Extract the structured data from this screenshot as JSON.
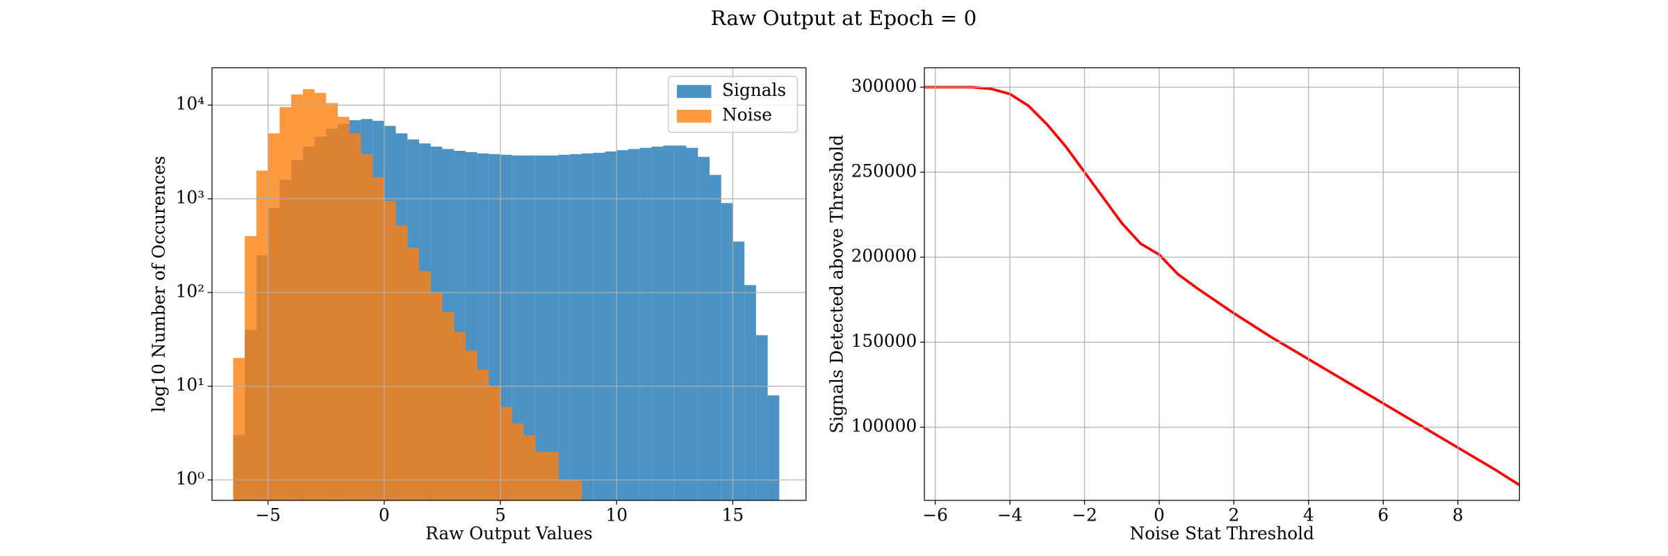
{
  "title": "Raw Output at Epoch = 0",
  "chart_data": [
    {
      "type": "histogram",
      "xlabel": "Raw Output Values",
      "ylabel": "log10 Number of Occurences",
      "log_y": true,
      "grid": true,
      "legend": "upper right",
      "bins": [
        -6.5,
        -6,
        -5.5,
        -5,
        -4.5,
        -4,
        -3.5,
        -3,
        -2.5,
        -2,
        -1.5,
        -1,
        -0.5,
        0,
        0.5,
        1,
        1.5,
        2,
        2.5,
        3,
        3.5,
        4,
        4.5,
        5,
        5.5,
        6,
        6.5,
        7,
        7.5,
        8,
        8.5,
        9,
        9.5,
        10,
        10.5,
        11,
        11.5,
        12,
        12.5,
        13,
        13.5,
        14,
        14.5,
        15,
        15.5,
        16,
        16.5,
        17
      ],
      "series": [
        {
          "name": "Signals",
          "color": "#1f77b4",
          "values": [
            3,
            40,
            250,
            800,
            1600,
            2600,
            3600,
            4600,
            5600,
            6300,
            6900,
            7100,
            6800,
            6000,
            5000,
            4300,
            3900,
            3600,
            3400,
            3250,
            3150,
            3050,
            3000,
            2950,
            2900,
            2900,
            2900,
            2900,
            2950,
            3000,
            3050,
            3100,
            3200,
            3300,
            3400,
            3500,
            3600,
            3700,
            3700,
            3500,
            2800,
            1800,
            900,
            350,
            120,
            35,
            8
          ]
        },
        {
          "name": "Noise",
          "color": "#ff7f0e",
          "values": [
            20,
            400,
            2000,
            5000,
            9500,
            13000,
            14800,
            13500,
            10500,
            7500,
            5000,
            3000,
            1700,
            950,
            520,
            300,
            170,
            100,
            62,
            38,
            24,
            15,
            10,
            6,
            4,
            3,
            2,
            2,
            1,
            1,
            0,
            0,
            0,
            0,
            0,
            0,
            0,
            0,
            0,
            0,
            0,
            0,
            0,
            0,
            0,
            0,
            0
          ]
        }
      ],
      "xlim": [
        -7.41,
        18.15
      ],
      "xticks": [
        {
          "value": -5,
          "label": "−5"
        },
        0,
        5,
        10,
        15
      ],
      "ylim": [
        0.605,
        25000
      ],
      "yticks": [
        {
          "value": 1,
          "label": "10⁰"
        },
        {
          "value": 10,
          "label": "10¹"
        },
        {
          "value": 100,
          "label": "10²"
        },
        {
          "value": 1000,
          "label": "10³"
        },
        {
          "value": 10000,
          "label": "10⁴"
        }
      ]
    },
    {
      "type": "line",
      "xlabel": "Noise Stat Threshold",
      "ylabel": "Signals Detected above Threshold",
      "grid": true,
      "x": [
        -6.29,
        -5,
        -4.5,
        -4,
        -3.5,
        -3,
        -2.5,
        -2,
        -1.5,
        -1,
        -0.5,
        0,
        0.5,
        1,
        2,
        3,
        4,
        5,
        6,
        7,
        8,
        9,
        9.65
      ],
      "series": [
        {
          "color": "#ff0000",
          "values": [
            300000,
            300000,
            299000,
            296000,
            289000,
            278000,
            265000,
            250000,
            235000,
            220000,
            208000,
            201500,
            190000,
            182000,
            167000,
            153000,
            140000,
            127000,
            114000,
            101000,
            88000,
            75000,
            66000
          ]
        }
      ],
      "xlim": [
        -6.29,
        9.65
      ],
      "xticks": [
        {
          "value": -6,
          "label": "−6"
        },
        {
          "value": -4,
          "label": "−4"
        },
        {
          "value": -2,
          "label": "−2"
        },
        0,
        2,
        4,
        6,
        8
      ],
      "ylim": [
        56960,
        311400
      ],
      "yticks": [
        100000,
        150000,
        200000,
        250000,
        300000
      ]
    }
  ]
}
